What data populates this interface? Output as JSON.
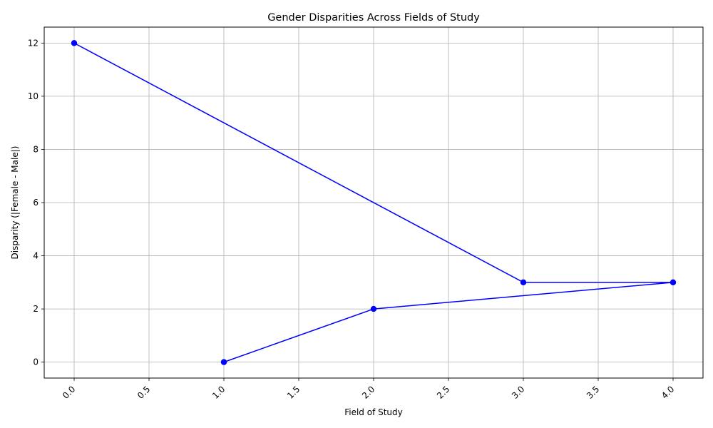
{
  "chart_data": {
    "type": "line",
    "title": "Gender Disparities Across Fields of Study",
    "xlabel": "Field of Study",
    "ylabel": "Disparity (|Female - Male|)",
    "xlim": [
      -0.2,
      4.2
    ],
    "ylim": [
      -0.6,
      12.6
    ],
    "xticks": [
      0.0,
      0.5,
      1.0,
      1.5,
      2.0,
      2.5,
      3.0,
      3.5,
      4.0
    ],
    "xtick_labels": [
      "0.0",
      "0.5",
      "1.0",
      "1.5",
      "2.0",
      "2.5",
      "3.0",
      "3.5",
      "4.0"
    ],
    "yticks": [
      0,
      2,
      4,
      6,
      8,
      10,
      12
    ],
    "ytick_labels": [
      "0",
      "2",
      "4",
      "6",
      "8",
      "10",
      "12"
    ],
    "xtick_rotation_deg": 45,
    "grid": true,
    "series": [
      {
        "color": "#0000ff",
        "marker": "circle",
        "x": [
          0,
          3,
          4,
          2,
          1
        ],
        "y": [
          12,
          3,
          3,
          2,
          0
        ]
      }
    ]
  }
}
